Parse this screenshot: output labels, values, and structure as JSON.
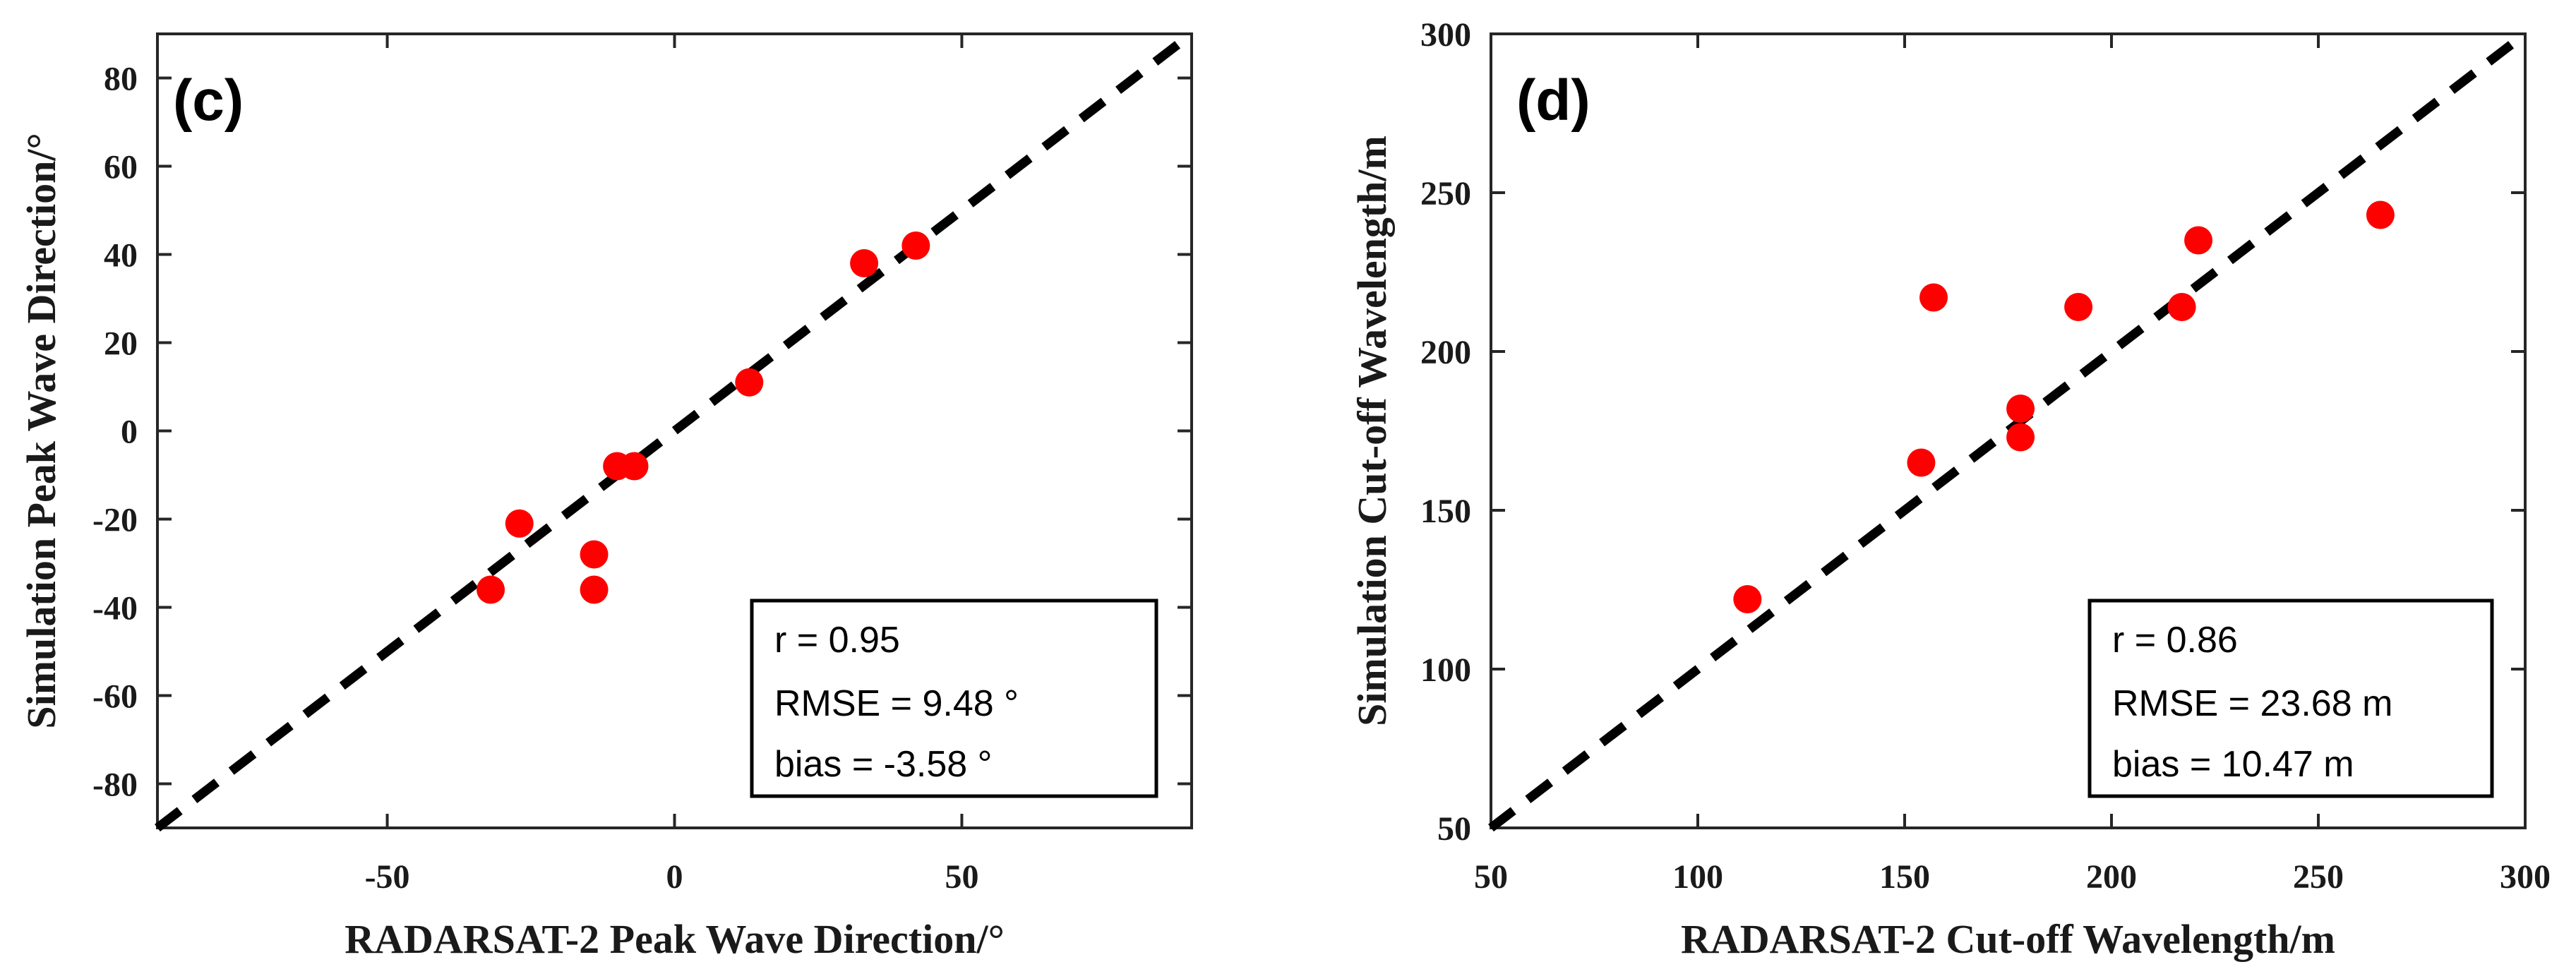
{
  "chart_data": [
    {
      "type": "scatter",
      "panel_label": "(c)",
      "xlabel": "RADARSAT-2 Peak Wave Direction/°",
      "ylabel": "Simulation Peak Wave  Direction/°",
      "xlim": [
        -90,
        90
      ],
      "ylim": [
        -90,
        90
      ],
      "xticks": [
        -50,
        0,
        50
      ],
      "xtick_labels": [
        "-50",
        "0",
        "50"
      ],
      "yticks": [
        -80,
        -60,
        -40,
        -20,
        0,
        20,
        40,
        60,
        80
      ],
      "ytick_labels": [
        "-80",
        "-60",
        "-40",
        "-20",
        "0",
        "20",
        "40",
        "60",
        "80"
      ],
      "reference_line": "1:1",
      "points": {
        "x": [
          -32,
          -27,
          -14,
          -14,
          -10,
          -7,
          13,
          33,
          42
        ],
        "y": [
          -36,
          -21,
          -28,
          -36,
          -8,
          -8,
          11,
          38,
          42
        ]
      },
      "point_color": "#ff0000",
      "stats": {
        "r": "r = 0.95",
        "rmse": "RMSE = 9.48 °",
        "bias": "bias = -3.58 °"
      },
      "legend_position": "bottom-right"
    },
    {
      "type": "scatter",
      "panel_label": "(d)",
      "xlabel": "RADARSAT-2 Cut-off  Wavelength/m",
      "ylabel": "Simulation Cut-off  Wavelength/m",
      "xlim": [
        50,
        300
      ],
      "ylim": [
        50,
        300
      ],
      "xticks": [
        50,
        100,
        150,
        200,
        250,
        300
      ],
      "xtick_labels": [
        "50",
        "100",
        "150",
        "200",
        "250",
        "300"
      ],
      "yticks": [
        50,
        100,
        150,
        200,
        250,
        300
      ],
      "ytick_labels": [
        "50",
        "100",
        "150",
        "200",
        "250",
        "300"
      ],
      "reference_line": "1:1",
      "points": {
        "x": [
          112,
          154,
          157,
          178,
          178,
          192,
          217,
          221,
          265
        ],
        "y": [
          122,
          165,
          217,
          182,
          173,
          214,
          214,
          235,
          243
        ]
      },
      "point_color": "#ff0000",
      "stats": {
        "r": "r = 0.86",
        "rmse": "RMSE = 23.68 m",
        "bias": "bias = 10.47 m"
      },
      "legend_position": "bottom-right"
    }
  ]
}
